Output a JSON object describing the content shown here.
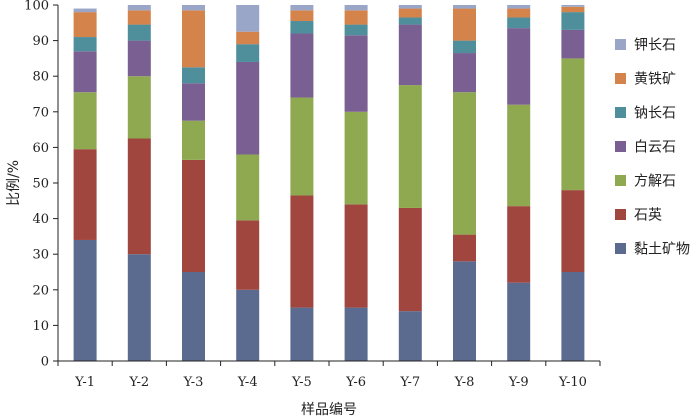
{
  "chart_data": {
    "type": "bar",
    "stacked": true,
    "title": "",
    "xlabel": "样品编号",
    "ylabel": "比例/%",
    "ylim": [
      0,
      100
    ],
    "yticks": [
      0,
      10,
      20,
      30,
      40,
      50,
      60,
      70,
      80,
      90,
      100
    ],
    "grid": false,
    "legend_position": "right",
    "categories": [
      "Y-1",
      "Y-2",
      "Y-3",
      "Y-4",
      "Y-5",
      "Y-6",
      "Y-7",
      "Y-8",
      "Y-9",
      "Y-10"
    ],
    "series": [
      {
        "name": "黏土矿物",
        "color": "#5b6b8f",
        "values": [
          34,
          30,
          25,
          20,
          15,
          15,
          14,
          28,
          22,
          25
        ]
      },
      {
        "name": "石英",
        "color": "#a0463f",
        "values": [
          25.5,
          32.5,
          31.5,
          19.5,
          31.5,
          29,
          29,
          7.5,
          21.5,
          23
        ]
      },
      {
        "name": "方解石",
        "color": "#8ea94f",
        "values": [
          16,
          17.5,
          11,
          18.5,
          27.5,
          26,
          34.5,
          40,
          28.5,
          37
        ]
      },
      {
        "name": "白云石",
        "color": "#7a5f93",
        "values": [
          11.5,
          10,
          10.5,
          26,
          18,
          21.5,
          17,
          11,
          21.5,
          8
        ]
      },
      {
        "name": "钠长石",
        "color": "#4f8f9c",
        "values": [
          4,
          4.5,
          4.5,
          5,
          3.5,
          3,
          2,
          3.5,
          3,
          5
        ]
      },
      {
        "name": "黄铁矿",
        "color": "#d4834a",
        "values": [
          7,
          4,
          16,
          3.5,
          3,
          4,
          2.5,
          9,
          2.5,
          1.5
        ]
      },
      {
        "name": "钾长石",
        "color": "#9aa6c8",
        "values": [
          1,
          1.5,
          1.5,
          7.5,
          1.5,
          1.5,
          1,
          1,
          1,
          0.5
        ]
      }
    ],
    "legend_order": [
      "钾长石",
      "黄铁矿",
      "钠长石",
      "白云石",
      "方解石",
      "石英",
      "黏土矿物"
    ]
  }
}
